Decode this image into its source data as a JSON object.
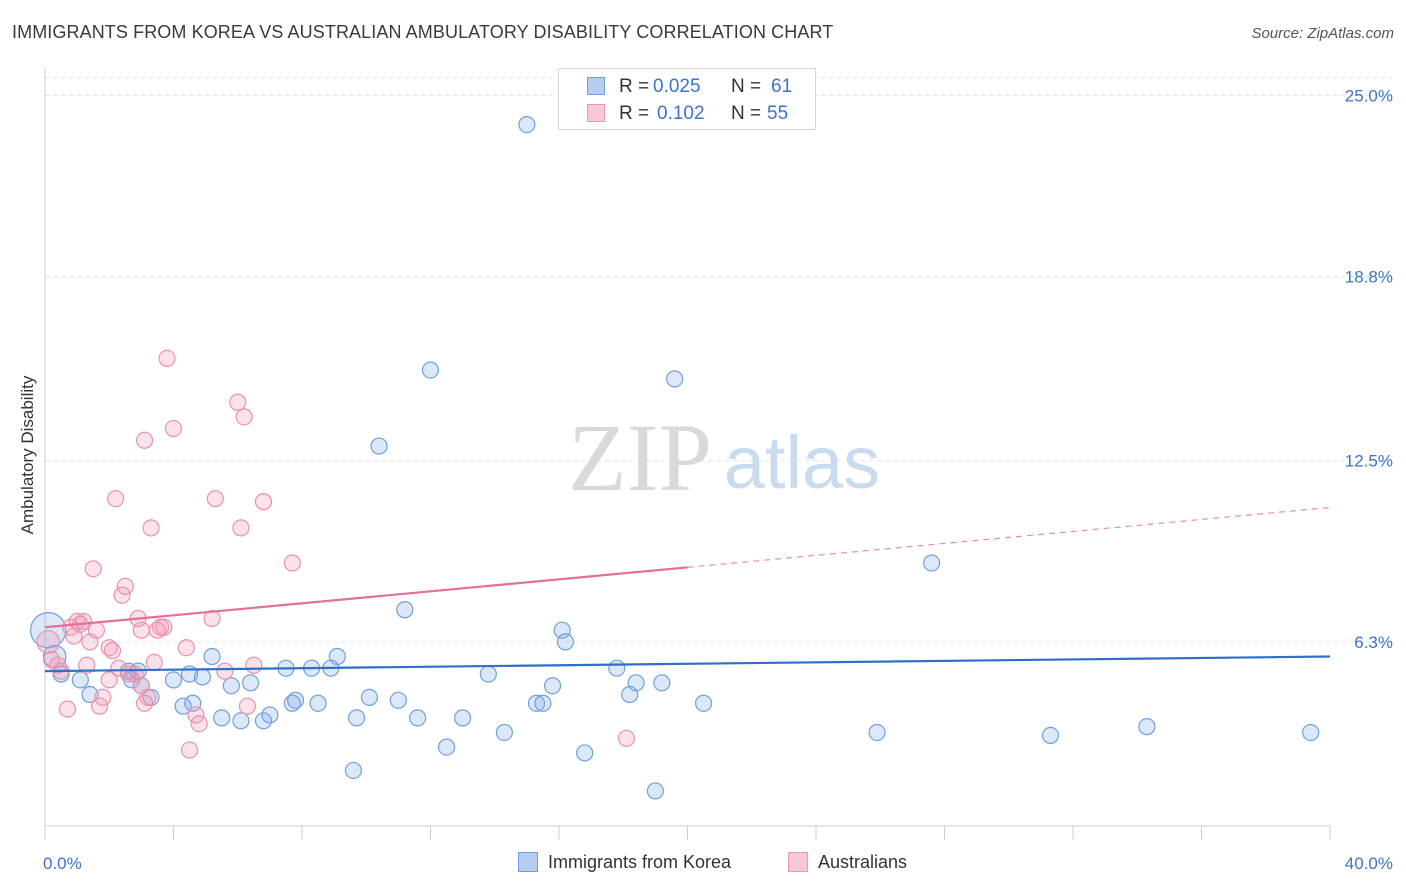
{
  "chart_data": {
    "type": "scatter",
    "title": "IMMIGRANTS FROM KOREA VS AUSTRALIAN AMBULATORY DISABILITY CORRELATION CHART",
    "source": "Source: ZipAtlas.com",
    "ylabel": "Ambulatory Disability",
    "xlabel": "",
    "xlim": [
      0,
      40
    ],
    "ylim": [
      0,
      25.8
    ],
    "x_tick_labels": [
      "0.0%",
      "40.0%"
    ],
    "y_ticks": [
      {
        "value": 6.3,
        "label": "6.3%"
      },
      {
        "value": 12.5,
        "label": "12.5%"
      },
      {
        "value": 18.8,
        "label": "18.8%"
      },
      {
        "value": 25.0,
        "label": "25.0%"
      }
    ],
    "watermark": {
      "zip": "ZIP",
      "atlas": "atlas"
    },
    "legend": [
      {
        "r_label": "R = ",
        "r_value": "0.025",
        "n_label": "N = ",
        "n_value": "61"
      },
      {
        "r_label": "R = ",
        "r_value": "0.102",
        "n_label": "N = ",
        "n_value": "55"
      }
    ],
    "series": [
      {
        "name": "Immigrants from Korea",
        "color": "#6fa0de",
        "fill": "rgba(130,170,230,0.28)",
        "trend": {
          "x0": 0,
          "y0": 5.3,
          "x1": 40,
          "y1": 5.8,
          "dash_from": null
        },
        "points": [
          [
            0.1,
            6.7,
            2.2
          ],
          [
            0.3,
            5.8,
            1.4
          ],
          [
            0.5,
            5.2,
            1
          ],
          [
            1.1,
            5.0,
            1
          ],
          [
            1.4,
            4.5,
            1
          ],
          [
            2.7,
            5.0,
            1
          ],
          [
            2.6,
            5.3,
            1
          ],
          [
            2.9,
            5.3,
            1
          ],
          [
            3.0,
            4.8,
            1
          ],
          [
            3.3,
            4.4,
            1
          ],
          [
            4.0,
            5.0,
            1
          ],
          [
            4.3,
            4.1,
            1
          ],
          [
            4.5,
            5.2,
            1
          ],
          [
            4.6,
            4.2,
            1
          ],
          [
            4.9,
            5.1,
            1
          ],
          [
            5.2,
            5.8,
            1
          ],
          [
            5.5,
            3.7,
            1
          ],
          [
            5.8,
            4.8,
            1
          ],
          [
            6.1,
            3.6,
            1
          ],
          [
            6.4,
            4.9,
            1
          ],
          [
            6.8,
            3.6,
            1
          ],
          [
            7.0,
            3.8,
            1
          ],
          [
            7.5,
            5.4,
            1
          ],
          [
            7.7,
            4.2,
            1
          ],
          [
            7.8,
            4.3,
            1
          ],
          [
            8.3,
            5.4,
            1
          ],
          [
            8.5,
            4.2,
            1
          ],
          [
            8.9,
            5.4,
            1
          ],
          [
            9.1,
            5.8,
            1
          ],
          [
            9.6,
            1.9,
            1
          ],
          [
            9.7,
            3.7,
            1
          ],
          [
            10.1,
            4.4,
            1
          ],
          [
            10.4,
            13.0,
            1
          ],
          [
            11.0,
            4.3,
            1
          ],
          [
            11.2,
            7.4,
            1
          ],
          [
            11.6,
            3.7,
            1
          ],
          [
            12.0,
            15.6,
            1
          ],
          [
            12.5,
            2.7,
            1
          ],
          [
            13.0,
            3.7,
            1
          ],
          [
            13.8,
            5.2,
            1
          ],
          [
            14.3,
            3.2,
            1
          ],
          [
            15.3,
            4.2,
            1
          ],
          [
            15.5,
            4.2,
            1
          ],
          [
            15.0,
            24.0,
            1
          ],
          [
            15.8,
            4.8,
            1
          ],
          [
            16.1,
            6.7,
            1
          ],
          [
            16.2,
            6.3,
            1
          ],
          [
            16.8,
            2.5,
            1
          ],
          [
            17.8,
            5.4,
            1
          ],
          [
            18.2,
            4.5,
            1
          ],
          [
            18.4,
            4.9,
            1
          ],
          [
            19.0,
            1.2,
            1
          ],
          [
            19.2,
            4.9,
            1
          ],
          [
            19.6,
            15.3,
            1
          ],
          [
            20.5,
            4.2,
            1
          ],
          [
            25.9,
            3.2,
            1
          ],
          [
            27.6,
            9.0,
            1
          ],
          [
            31.3,
            3.1,
            1
          ],
          [
            34.3,
            3.4,
            1
          ],
          [
            39.4,
            3.2,
            1
          ]
        ]
      },
      {
        "name": "Australians",
        "color": "#ec90ad",
        "fill": "rgba(240,150,180,0.28)",
        "trend": {
          "x0": 0,
          "y0": 6.8,
          "x1": 40,
          "y1": 10.9,
          "dash_from": 20
        },
        "points": [
          [
            0.1,
            6.3,
            1.4
          ],
          [
            0.2,
            5.7,
            1
          ],
          [
            0.4,
            5.5,
            1
          ],
          [
            0.5,
            5.3,
            1
          ],
          [
            0.7,
            4.0,
            1
          ],
          [
            0.8,
            6.8,
            1
          ],
          [
            0.9,
            6.5,
            1
          ],
          [
            1.0,
            7.0,
            1
          ],
          [
            1.1,
            6.9,
            1
          ],
          [
            1.2,
            7.0,
            1
          ],
          [
            1.3,
            5.5,
            1
          ],
          [
            1.4,
            6.3,
            1
          ],
          [
            1.5,
            8.8,
            1
          ],
          [
            1.6,
            6.7,
            1
          ],
          [
            1.7,
            4.1,
            1
          ],
          [
            1.8,
            4.4,
            1
          ],
          [
            2.0,
            5.0,
            1
          ],
          [
            2.0,
            6.1,
            1
          ],
          [
            2.1,
            6.0,
            1
          ],
          [
            2.2,
            11.2,
            1
          ],
          [
            2.3,
            5.4,
            1
          ],
          [
            2.4,
            7.9,
            1
          ],
          [
            2.5,
            8.2,
            1
          ],
          [
            2.6,
            5.2,
            1
          ],
          [
            2.8,
            5.2,
            1
          ],
          [
            2.9,
            7.1,
            1
          ],
          [
            3.0,
            6.7,
            1
          ],
          [
            3.0,
            4.8,
            1
          ],
          [
            3.1,
            13.2,
            1
          ],
          [
            3.2,
            4.4,
            1
          ],
          [
            3.1,
            4.2,
            1
          ],
          [
            3.3,
            10.2,
            1
          ],
          [
            3.4,
            5.6,
            1
          ],
          [
            3.5,
            6.7,
            1
          ],
          [
            3.6,
            6.8,
            1
          ],
          [
            3.7,
            6.8,
            1
          ],
          [
            3.8,
            16.0,
            1
          ],
          [
            4.0,
            13.6,
            1
          ],
          [
            4.4,
            6.1,
            1
          ],
          [
            4.7,
            3.8,
            1
          ],
          [
            4.8,
            3.5,
            1
          ],
          [
            4.5,
            2.6,
            1
          ],
          [
            5.2,
            7.1,
            1
          ],
          [
            5.3,
            11.2,
            1
          ],
          [
            5.6,
            5.3,
            1
          ],
          [
            6.0,
            14.5,
            1
          ],
          [
            6.1,
            10.2,
            1
          ],
          [
            6.2,
            14.0,
            1
          ],
          [
            6.3,
            4.1,
            1
          ],
          [
            6.5,
            5.5,
            1
          ],
          [
            6.8,
            11.1,
            1
          ],
          [
            7.7,
            9.0,
            1
          ],
          [
            18.1,
            3.0,
            1
          ]
        ]
      }
    ]
  }
}
